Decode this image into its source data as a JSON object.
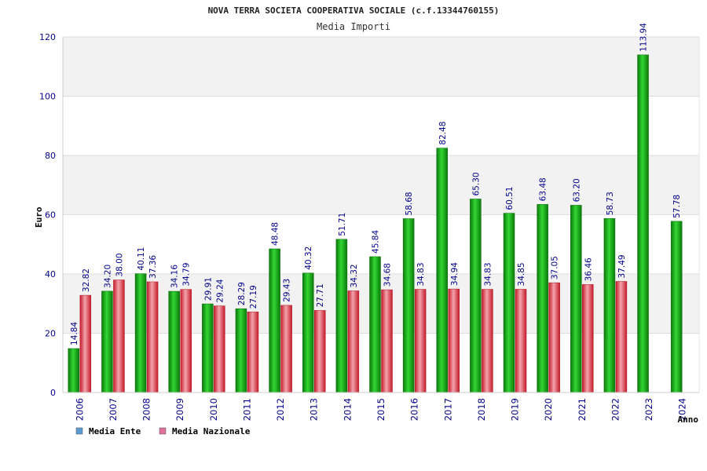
{
  "chart_data": {
    "type": "bar",
    "title": "NOVA TERRA SOCIETA COOPERATIVA SOCIALE (c.f.13344760155)",
    "subtitle": "Media Importi",
    "xlabel": "Anno",
    "ylabel": "Euro",
    "ylim": [
      0,
      120
    ],
    "yticks": [
      "0",
      "20",
      "40",
      "60",
      "80",
      "100",
      "120"
    ],
    "grid": true,
    "legend_position": "bottom-left",
    "categories": [
      "2006",
      "2007",
      "2008",
      "2009",
      "2010",
      "2011",
      "2012",
      "2013",
      "2014",
      "2015",
      "2016",
      "2017",
      "2018",
      "2019",
      "2020",
      "2021",
      "2022",
      "2023",
      "2024"
    ],
    "series": [
      {
        "name": "Media Ente",
        "legend_color": "#5b9bd5",
        "bar_color": "#11a811",
        "values": [
          14.84,
          34.2,
          40.11,
          34.16,
          29.91,
          28.29,
          48.48,
          40.32,
          51.71,
          45.84,
          58.68,
          82.48,
          65.3,
          60.51,
          63.48,
          63.2,
          58.73,
          113.94,
          57.78
        ],
        "labels": [
          "14.84",
          "34.20",
          "40.11",
          "34.16",
          "29.91",
          "28.29",
          "48.48",
          "40.32",
          "51.71",
          "45.84",
          "58.68",
          "82.48",
          "65.30",
          "60.51",
          "63.48",
          "63.20",
          "58.73",
          "113.94",
          "57.78"
        ]
      },
      {
        "name": "Media Nazionale",
        "legend_color": "#e0709a",
        "bar_color": "#e8303f",
        "values": [
          32.82,
          38.0,
          37.36,
          34.79,
          29.24,
          27.19,
          29.43,
          27.71,
          34.32,
          34.68,
          34.83,
          34.94,
          34.83,
          34.85,
          37.05,
          36.46,
          37.49,
          null,
          null
        ],
        "labels": [
          "32.82",
          "38.00",
          "37.36",
          "34.79",
          "29.24",
          "27.19",
          "29.43",
          "27.71",
          "34.32",
          "34.68",
          "34.83",
          "34.94",
          "34.83",
          "34.85",
          "37.05",
          "36.46",
          "37.49",
          "",
          ""
        ]
      }
    ]
  }
}
